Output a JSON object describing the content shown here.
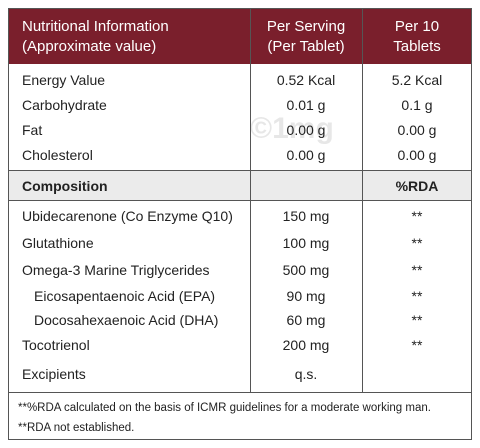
{
  "header": {
    "columns": [
      [
        "Nutritional Information",
        "(Approximate value)"
      ],
      [
        "Per Serving",
        "(Per Tablet)"
      ],
      [
        "Per 10",
        "Tablets"
      ]
    ]
  },
  "nutrition": {
    "rows": [
      [
        "Energy Value",
        "0.52 Kcal",
        "5.2 Kcal"
      ],
      [
        "Carbohydrate",
        "0.01 g",
        "0.1 g"
      ],
      [
        "Fat",
        "0.00 g",
        "0.00 g"
      ],
      [
        "Cholesterol",
        "0.00 g",
        "0.00 g"
      ]
    ]
  },
  "composition": {
    "header": [
      "Composition",
      "%RDA"
    ],
    "rows": [
      [
        "Ubidecarenone (Co Enzyme Q10)",
        "150 mg",
        "**"
      ],
      [
        "Glutathione",
        "100 mg",
        "**"
      ],
      [
        "Omega-3 Marine Triglycerides",
        "500 mg",
        "**"
      ],
      [
        "Eicosapentaenoic Acid (EPA)",
        "90 mg",
        "**"
      ],
      [
        "Docosahexaenoic Acid (DHA)",
        "60 mg",
        "**"
      ],
      [
        "Tocotrienol",
        "200 mg",
        "**"
      ],
      [
        "Excipients",
        "q.s."
      ]
    ]
  },
  "footnotes": [
    "**%RDA calculated on the basis of ICMR guidelines for a moderate working man.",
    "**RDA not established."
  ],
  "watermark": "©1mg"
}
